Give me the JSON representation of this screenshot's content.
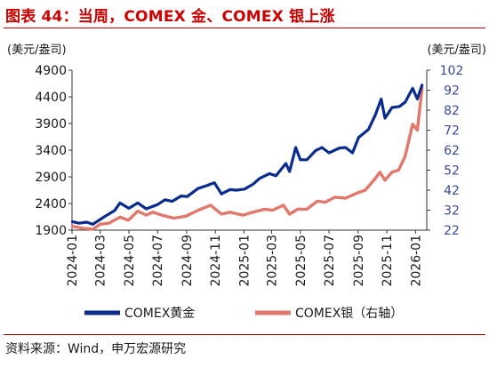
{
  "figure": {
    "title": "图表 44：当周，COMEX 金、COMEX 银上涨",
    "source": "资料来源：Wind，申万宏源研究"
  },
  "colors": {
    "gold": "#0b2c8f",
    "silver": "#e2776c",
    "title": "#cc0000",
    "axis": "#333333",
    "right_tick_label": "#3c4a9a"
  },
  "chart_data": {
    "type": "line",
    "xlabel": "",
    "x_tick_labels": [
      "2024-01",
      "2024-03",
      "2024-05",
      "2024-07",
      "2024-09",
      "2024-11",
      "2025-01",
      "2025-03",
      "2025-05",
      "2025-07",
      "2025-09",
      "2025-11",
      "2026-01"
    ],
    "y_left": {
      "unit_label": "(美元/盎司)",
      "ylim": [
        1900,
        4900
      ],
      "ticks": [
        1900,
        2400,
        2900,
        3400,
        3900,
        4400,
        4900
      ]
    },
    "y_right": {
      "unit_label": "(美元/盎司)",
      "ylim": [
        22,
        102
      ],
      "ticks": [
        22,
        32,
        42,
        52,
        62,
        72,
        82,
        92,
        102
      ]
    },
    "grid": false,
    "legend": "bottom",
    "series": [
      {
        "name": "COMEX黄金",
        "axis": "left",
        "x": [
          "2024-01-02",
          "2024-01-16",
          "2024-02-01",
          "2024-02-14",
          "2024-03-01",
          "2024-03-15",
          "2024-04-01",
          "2024-04-12",
          "2024-05-01",
          "2024-05-20",
          "2024-06-07",
          "2024-07-01",
          "2024-07-17",
          "2024-08-01",
          "2024-08-20",
          "2024-09-02",
          "2024-09-25",
          "2024-10-15",
          "2024-10-30",
          "2024-11-14",
          "2024-12-02",
          "2024-12-16",
          "2025-01-02",
          "2025-01-20",
          "2025-02-03",
          "2025-02-24",
          "2025-03-10",
          "2025-03-31",
          "2025-04-08",
          "2025-04-21",
          "2025-05-01",
          "2025-05-15",
          "2025-06-02",
          "2025-06-16",
          "2025-07-01",
          "2025-07-23",
          "2025-08-05",
          "2025-08-20",
          "2025-09-02",
          "2025-09-23",
          "2025-10-08",
          "2025-10-20",
          "2025-10-28",
          "2025-11-12",
          "2025-11-28",
          "2025-12-10",
          "2025-12-26",
          "2026-01-05",
          "2026-01-15"
        ],
        "values": [
          2060,
          2030,
          2050,
          2010,
          2100,
          2180,
          2270,
          2410,
          2310,
          2410,
          2300,
          2380,
          2470,
          2440,
          2540,
          2530,
          2680,
          2740,
          2790,
          2580,
          2660,
          2650,
          2670,
          2760,
          2870,
          2960,
          2920,
          3150,
          3000,
          3450,
          3220,
          3220,
          3390,
          3450,
          3350,
          3440,
          3450,
          3350,
          3640,
          3790,
          4070,
          4360,
          4000,
          4200,
          4220,
          4300,
          4560,
          4360,
          4620
        ]
      },
      {
        "name": "COMEX银（右轴）",
        "axis": "right",
        "x": [
          "2024-01-02",
          "2024-01-22",
          "2024-02-15",
          "2024-03-01",
          "2024-03-20",
          "2024-04-12",
          "2024-04-30",
          "2024-05-20",
          "2024-06-07",
          "2024-06-21",
          "2024-07-10",
          "2024-08-05",
          "2024-08-30",
          "2024-09-26",
          "2024-10-22",
          "2024-11-14",
          "2024-12-02",
          "2024-12-30",
          "2025-01-20",
          "2025-02-14",
          "2025-03-03",
          "2025-03-26",
          "2025-04-08",
          "2025-04-25",
          "2025-05-15",
          "2025-06-06",
          "2025-06-23",
          "2025-07-14",
          "2025-08-05",
          "2025-08-29",
          "2025-09-16",
          "2025-10-08",
          "2025-10-17",
          "2025-10-28",
          "2025-11-12",
          "2025-11-26",
          "2025-12-10",
          "2025-12-26",
          "2026-01-05",
          "2026-01-15"
        ],
        "values": [
          24,
          23,
          22.5,
          25,
          25.5,
          28.5,
          27,
          31.5,
          29.5,
          31,
          29.5,
          28,
          29,
          32,
          34.5,
          30,
          31,
          29.5,
          31,
          32.5,
          32,
          34.5,
          30,
          32.5,
          32.5,
          36.5,
          36,
          38.5,
          38,
          40.5,
          42,
          48,
          51,
          47,
          51,
          52,
          59,
          75,
          72,
          93
        ]
      }
    ]
  }
}
